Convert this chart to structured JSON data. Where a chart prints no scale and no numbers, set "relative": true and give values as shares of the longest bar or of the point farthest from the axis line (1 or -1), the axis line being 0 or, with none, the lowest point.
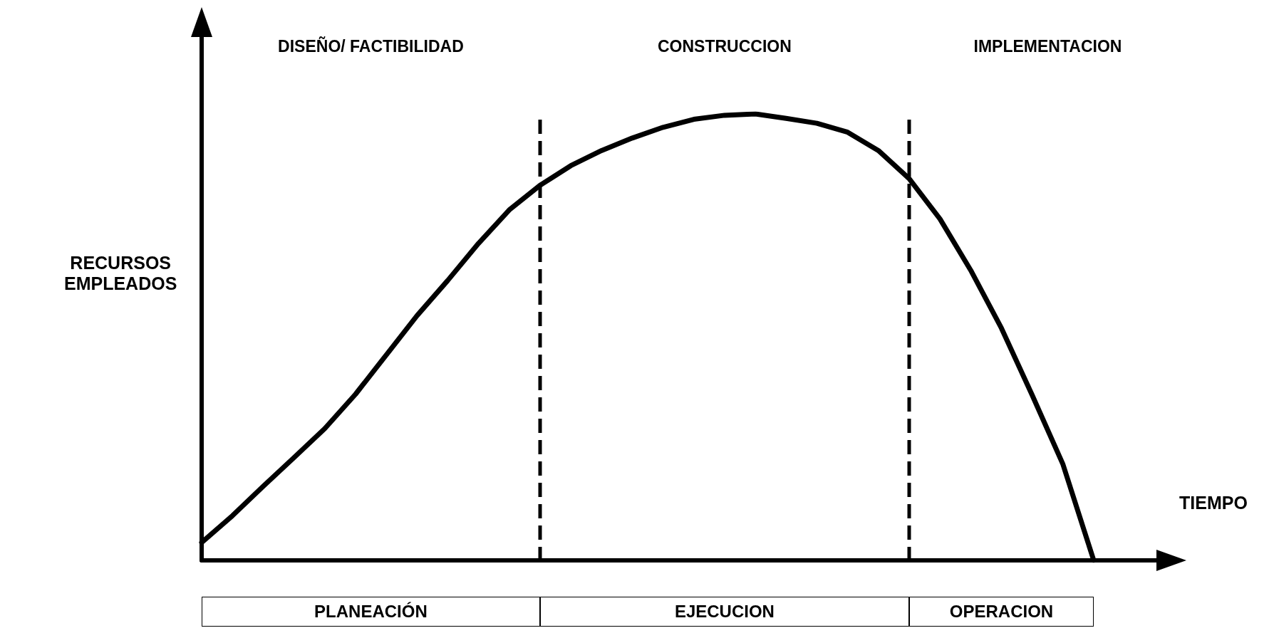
{
  "chart_data": {
    "type": "line",
    "relative": true,
    "xlabel": "TIEMPO",
    "ylabel": "RECURSOS\nEMPLEADOS",
    "categories": [
      null,
      null,
      null,
      null,
      null,
      null,
      null,
      null,
      null,
      null,
      null,
      null,
      null,
      null,
      null,
      null,
      null,
      null,
      null,
      null,
      null,
      null,
      null,
      null,
      null,
      null,
      null,
      null,
      null,
      null
    ],
    "tick_labels": false,
    "grid": false,
    "marker": "none",
    "line_style": "solid",
    "series": [
      {
        "color": "#000000",
        "values": [
          0.04,
          0.1,
          0.166,
          0.23,
          0.295,
          0.372,
          0.46,
          0.548,
          0.627,
          0.71,
          0.785,
          0.84,
          0.884,
          0.918,
          0.946,
          0.97,
          0.988,
          0.997,
          1,
          0.99,
          0.979,
          0.959,
          0.918,
          0.855,
          0.765,
          0.65,
          0.52,
          0.37,
          0.215,
          0
        ]
      }
    ],
    "annotations": [
      "DISEÑO/ FACTIBILIDAD",
      "CONSTRUCCION",
      "IMPLEMENTACION",
      "PLANEACIÓN",
      "EJECUCION",
      "OPERACION"
    ]
  }
}
